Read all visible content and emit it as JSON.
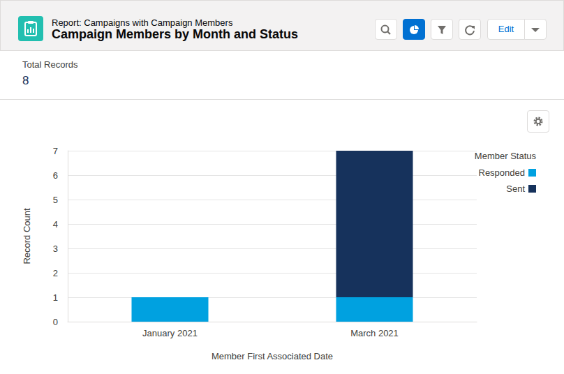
{
  "page": {
    "report_type": "Report: Campaigns with Campaign Members",
    "title": "Campaign Members by Month and Status",
    "buttons": [
      "Edit"
    ],
    "summary": {
      "label": "Total Records",
      "value": 8
    }
  },
  "chart_data": {
    "type": "bar",
    "stacked": true,
    "categories": [
      "January 2021",
      "March 2021"
    ],
    "x_label": "Member First Associated Date",
    "y_label": "Record Count",
    "legend_title": "Member Status",
    "legend": "top-right",
    "series": [
      {
        "name": "Responded",
        "color": "#00a1e0",
        "values": [
          1,
          1
        ]
      },
      {
        "name": "Sent",
        "color": "#16325c",
        "values": [
          0,
          6
        ]
      }
    ],
    "ylim": [
      0,
      7
    ],
    "yticks": [
      0,
      1,
      2,
      3,
      4,
      5,
      6,
      7
    ],
    "grid": true
  }
}
